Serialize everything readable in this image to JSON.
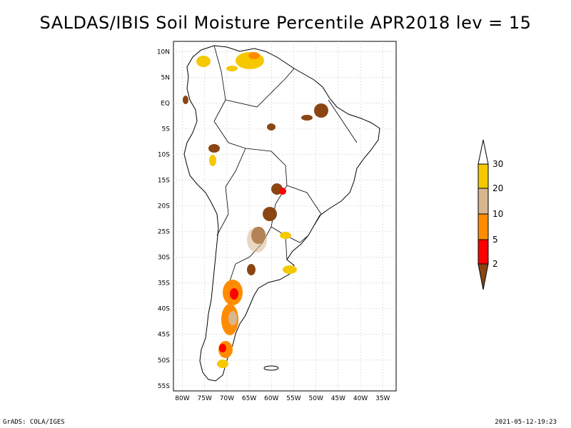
{
  "title": "SALDAS/IBIS Soil Moisture Percentile APR2018 lev = 15",
  "map": {
    "region": "South America",
    "lat_range": [
      -56,
      12
    ],
    "lon_range": [
      -82,
      -32
    ],
    "lat_ticks": [
      "10N",
      "5N",
      "EQ",
      "5S",
      "10S",
      "15S",
      "20S",
      "25S",
      "30S",
      "35S",
      "40S",
      "45S",
      "50S",
      "55S"
    ],
    "lon_ticks": [
      "80W",
      "75W",
      "70W",
      "65W",
      "60W",
      "55W",
      "50W",
      "45W",
      "40W",
      "35W"
    ]
  },
  "legend": {
    "labels": [
      "30",
      "20",
      "10",
      "5",
      "2"
    ],
    "colors": {
      "above30": "#ffffff",
      "p20_30": "#f5c800",
      "p10_20": "#d8b68e",
      "p5_10": "#ff8c00",
      "p2_5": "#ff0000",
      "below2": "#8b4513"
    }
  },
  "footer": {
    "left": "GrADS: COLA/IGES",
    "right": "2021-05-12-19:23"
  }
}
